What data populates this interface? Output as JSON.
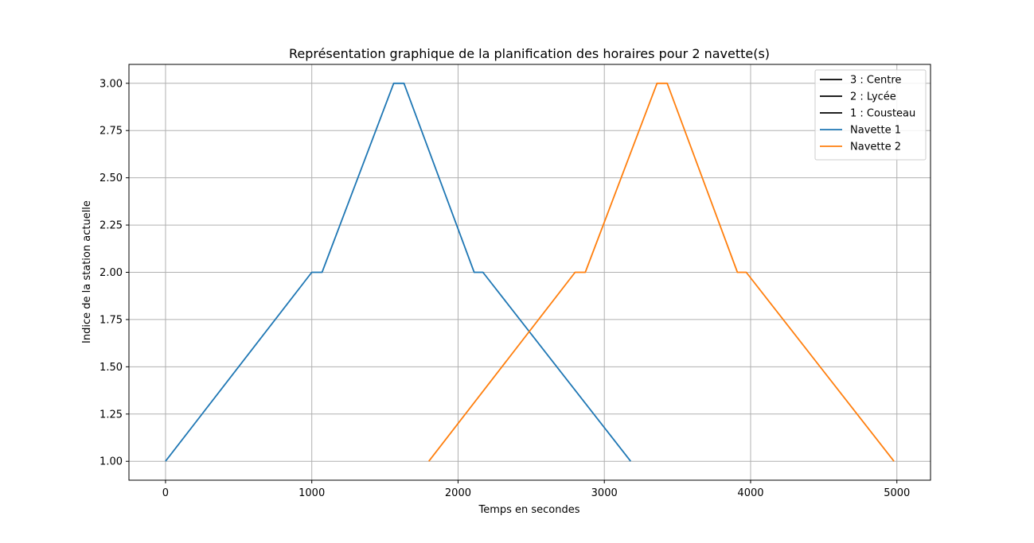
{
  "chart_data": {
    "type": "line",
    "title": "Représentation graphique de la planification des horaires pour 2 navette(s)",
    "xlabel": "Temps en secondes",
    "ylabel": "Indice de la station actuelle",
    "xlim": [
      -250,
      5230
    ],
    "ylim": [
      0.9,
      3.1
    ],
    "x_ticks": [
      0,
      1000,
      2000,
      3000,
      4000,
      5000
    ],
    "x_tick_labels": [
      "0",
      "1000",
      "2000",
      "3000",
      "4000",
      "5000"
    ],
    "y_ticks": [
      1.0,
      1.25,
      1.5,
      1.75,
      2.0,
      2.25,
      2.5,
      2.75,
      3.0
    ],
    "y_tick_labels": [
      "1.00",
      "1.25",
      "1.50",
      "1.75",
      "2.00",
      "2.25",
      "2.50",
      "2.75",
      "3.00"
    ],
    "grid": true,
    "legend_position": "top-right",
    "legend_entries": [
      {
        "label": "3 : Centre",
        "color": "#000000"
      },
      {
        "label": "2 : Lycée",
        "color": "#000000"
      },
      {
        "label": "1 : Cousteau",
        "color": "#000000"
      },
      {
        "label": "Navette 1",
        "color": "#1f77b4"
      },
      {
        "label": "Navette 2",
        "color": "#ff7f0e"
      }
    ],
    "series": [
      {
        "name": "Navette 1",
        "color": "#1f77b4",
        "x": [
          0,
          1000,
          1070,
          1560,
          1630,
          2110,
          2170,
          3180
        ],
        "y": [
          1,
          2,
          2,
          3,
          3,
          2,
          2,
          1
        ]
      },
      {
        "name": "Navette 2",
        "color": "#ff7f0e",
        "x": [
          1800,
          2800,
          2870,
          3360,
          3430,
          3910,
          3970,
          4980
        ],
        "y": [
          1,
          2,
          2,
          3,
          3,
          2,
          2,
          1
        ]
      }
    ]
  }
}
